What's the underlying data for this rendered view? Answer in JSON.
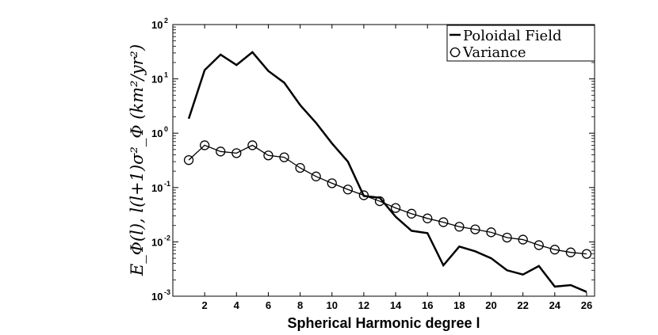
{
  "chart_data": {
    "type": "line",
    "xlabel": "Spherical Harmonic degree  l",
    "ylabel": "E_Φ(l), l(l+1)σ²_Φ     (km²/yr²)",
    "xlim": [
      0,
      26.5
    ],
    "ylim": [
      0.001,
      100
    ],
    "yscale": "log",
    "grid": false,
    "legend_position": "top-right",
    "x_ticks": [
      2,
      4,
      6,
      8,
      10,
      12,
      14,
      16,
      18,
      20,
      22,
      24,
      26
    ],
    "y_ticks": [
      {
        "base": "10",
        "exp": "-3",
        "value": 0.001
      },
      {
        "base": "10",
        "exp": "-2",
        "value": 0.01
      },
      {
        "base": "10",
        "exp": "-1",
        "value": 0.1
      },
      {
        "base": "10",
        "exp": "0",
        "value": 1
      },
      {
        "base": "10",
        "exp": "1",
        "value": 10
      },
      {
        "base": "10",
        "exp": "2",
        "value": 100
      }
    ],
    "x": [
      1,
      2,
      3,
      4,
      5,
      6,
      7,
      8,
      9,
      10,
      11,
      12,
      13,
      14,
      15,
      16,
      17,
      18,
      19,
      20,
      21,
      22,
      23,
      24,
      25,
      26
    ],
    "series": [
      {
        "name": "Poloidal Field",
        "marker": "none",
        "color": "#000000",
        "values": [
          1.85,
          14.5,
          28,
          18,
          31,
          14,
          8.5,
          3.3,
          1.55,
          0.65,
          0.3,
          0.07,
          0.065,
          0.029,
          0.016,
          0.0145,
          0.0037,
          0.0082,
          0.0067,
          0.005,
          0.003,
          0.0025,
          0.0036,
          0.0015,
          0.0016,
          0.0012
        ]
      },
      {
        "name": "Variance",
        "marker": "circle",
        "color": "#000000",
        "values": [
          0.32,
          0.6,
          0.46,
          0.43,
          0.6,
          0.39,
          0.36,
          0.23,
          0.16,
          0.12,
          0.092,
          0.072,
          0.056,
          0.042,
          0.033,
          0.027,
          0.023,
          0.019,
          0.017,
          0.015,
          0.012,
          0.011,
          0.0087,
          0.0072,
          0.0064,
          0.006
        ]
      }
    ]
  }
}
